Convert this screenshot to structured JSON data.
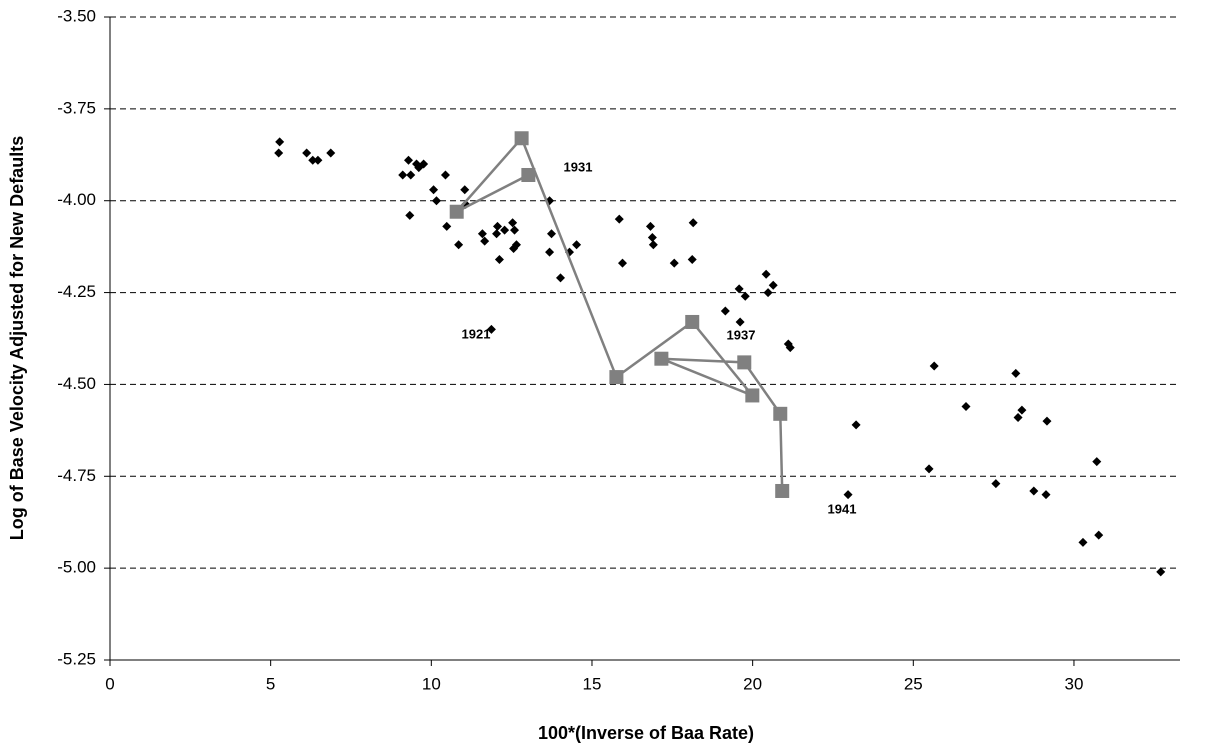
{
  "chart_data": {
    "type": "scatter",
    "x_label": "100*(Inverse of Baa Rate)",
    "y_label": "Log of Base Velocity Adjusted for New Defaults",
    "xlim": [
      0,
      33.3
    ],
    "ylim": [
      -5.25,
      -3.5
    ],
    "xticks": [
      0,
      5,
      10,
      15,
      20,
      25,
      30
    ],
    "yticks": [
      {
        "value": -5.25,
        "label": "-5.25"
      },
      {
        "value": -5,
        "label": "-5.00"
      },
      {
        "value": -4.75,
        "label": "-4.75"
      },
      {
        "value": -4.5,
        "label": "-4.50"
      },
      {
        "value": -4.25,
        "label": "-4.25"
      },
      {
        "value": -4,
        "label": "-4.00"
      },
      {
        "value": -3.75,
        "label": "-3.75"
      },
      {
        "value": -3.5,
        "label": "-3.50"
      }
    ],
    "grid": true,
    "annotations": [
      "1931",
      "1921",
      "1937",
      "1941"
    ],
    "series": [
      {
        "color": "#000000",
        "marker": "diamond",
        "line": false,
        "x": [
          5.28,
          5.25,
          6.12,
          6.31,
          6.47,
          6.87,
          9.11,
          9.29,
          9.36,
          9.54,
          9.76,
          9.61,
          10.44,
          10.07,
          11.04,
          10.16,
          11.07,
          9.33,
          10.48,
          11.59,
          11.66,
          10.85,
          12.06,
          12.53,
          12.28,
          12.59,
          12.03,
          12.12,
          12.65,
          12.56,
          13.68,
          13.74,
          13.68,
          14.3,
          14.52,
          14.02,
          15.85,
          15.95,
          16.82,
          16.88,
          16.91,
          17.56,
          18.15,
          18.12,
          19.15,
          19.58,
          19.77,
          19.61,
          20.42,
          20.64,
          20.48,
          21.11,
          21.17,
          11.87,
          23.22,
          25.65,
          25.49,
          26.64,
          27.57,
          28.19,
          28.26,
          28.38,
          28.75,
          29.16,
          29.13,
          30.28,
          30.71,
          30.77,
          32.7,
          22.97
        ],
        "values": [
          -3.84,
          -3.87,
          -3.87,
          -3.89,
          -3.89,
          -3.87,
          -3.93,
          -3.89,
          -3.93,
          -3.9,
          -3.9,
          -3.91,
          -3.93,
          -3.97,
          -3.97,
          -4.0,
          -4.01,
          -4.04,
          -4.07,
          -4.09,
          -4.11,
          -4.12,
          -4.07,
          -4.06,
          -4.08,
          -4.08,
          -4.09,
          -4.16,
          -4.12,
          -4.13,
          -4.0,
          -4.09,
          -4.14,
          -4.14,
          -4.12,
          -4.21,
          -4.05,
          -4.17,
          -4.07,
          -4.1,
          -4.12,
          -4.17,
          -4.06,
          -4.16,
          -4.3,
          -4.24,
          -4.26,
          -4.33,
          -4.2,
          -4.23,
          -4.25,
          -4.39,
          -4.4,
          -4.35,
          -4.61,
          -4.45,
          -4.73,
          -4.56,
          -4.77,
          -4.47,
          -4.59,
          -4.57,
          -4.79,
          -4.6,
          -4.8,
          -4.93,
          -4.71,
          -4.91,
          -5.01,
          -4.8
        ]
      },
      {
        "color": "#808080",
        "marker": "square",
        "line": true,
        "x": [
          13.02,
          10.79,
          12.81,
          15.76,
          18.12,
          19.99,
          17.16,
          19.74,
          20.86,
          20.92
        ],
        "values": [
          -3.93,
          -4.03,
          -3.83,
          -4.48,
          -4.33,
          -4.53,
          -4.43,
          -4.44,
          -4.58,
          -4.79
        ]
      }
    ]
  }
}
